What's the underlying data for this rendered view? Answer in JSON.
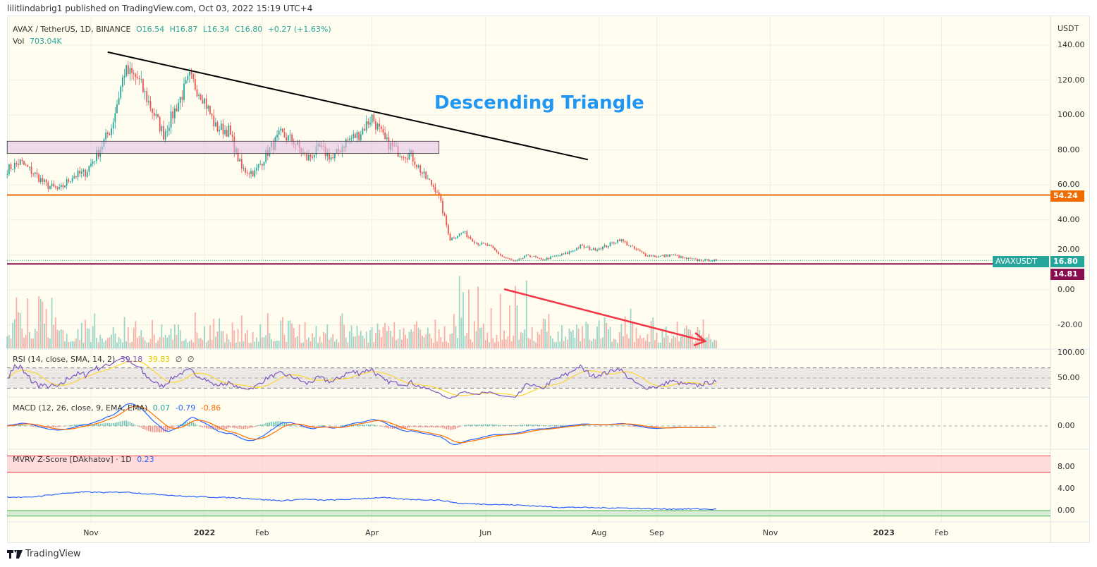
{
  "header": {
    "published": "lilitlindabrig1 published on TradingView.com, Oct 03, 2022 15:19 UTC+4"
  },
  "legend": {
    "symbol": "AVAX / TetherUS, 1D, BINANCE",
    "open": "O16.54",
    "high": "H16.87",
    "low": "L16.34",
    "close": "C16.80",
    "change": "+0.27 (+1.63%)",
    "vol_label": "Vol",
    "vol_value": "703.04K"
  },
  "rsi_legend": {
    "label": "RSI (14, close, SMA, 14, 2)",
    "rsi": "39.18",
    "sma": "39.83",
    "x1": "∅",
    "x2": "∅"
  },
  "macd_legend": {
    "label": "MACD (12, 26, close, 9, EMA, EMA)",
    "hist": "0.07",
    "macd": "-0.79",
    "signal": "-0.86"
  },
  "mvrv_legend": {
    "label": "MVRV Z-Score [DAkhatov] · 1D",
    "value": "0.23"
  },
  "axis": {
    "currency": "USDT",
    "price_ticks": [
      "140.00",
      "120.00",
      "100.00",
      "80.00",
      "60.00",
      "40.00",
      "20.00",
      "0.00",
      "-20.00"
    ],
    "rsi_ticks": [
      "100.00",
      "50.00"
    ],
    "macd_ticks": [
      "0.00"
    ],
    "mvrv_ticks": [
      "8.00",
      "4.00",
      "0.00"
    ],
    "time_ticks": [
      "Nov",
      "2022",
      "Feb",
      "Apr",
      "Jun",
      "Aug",
      "Sep",
      "Nov",
      "2023",
      "Feb"
    ]
  },
  "tags": {
    "orange_level": "54.24",
    "symbol": "AVAXUSDT",
    "last": "16.80",
    "purple_level": "14.81"
  },
  "annotation": {
    "title": "Descending Triangle"
  },
  "brand": {
    "name": "TradingView"
  },
  "colors": {
    "up": "#26a69a",
    "down": "#ef5350",
    "orange": "#ef6c00",
    "purple": "#880e4f",
    "rsi": "#7e57c2",
    "rsi_sma": "#fdd835",
    "macd": "#2962ff",
    "signal": "#ff6d00",
    "mvrv": "#2962ff",
    "title": "#2196f3"
  },
  "chart_data": {
    "type": "candlestick",
    "symbol": "AVAX / TetherUS, 1D, BINANCE",
    "ylim": [
      -25,
      150
    ],
    "weekly_close": {
      "dates": [
        "2021-09-17",
        "2021-09-24",
        "2021-10-01",
        "2021-10-08",
        "2021-10-15",
        "2021-10-22",
        "2021-10-29",
        "2021-11-05",
        "2021-11-12",
        "2021-11-19",
        "2021-11-26",
        "2021-12-03",
        "2021-12-10",
        "2021-12-17",
        "2021-12-24",
        "2021-12-31",
        "2022-01-07",
        "2022-01-14",
        "2022-01-21",
        "2022-01-28",
        "2022-02-04",
        "2022-02-11",
        "2022-02-18",
        "2022-02-25",
        "2022-03-04",
        "2022-03-11",
        "2022-03-18",
        "2022-03-25",
        "2022-04-01",
        "2022-04-08",
        "2022-04-15",
        "2022-04-22",
        "2022-04-29",
        "2022-05-06",
        "2022-05-13",
        "2022-05-20",
        "2022-05-27",
        "2022-06-03",
        "2022-06-10",
        "2022-06-17",
        "2022-06-24",
        "2022-07-01",
        "2022-07-08",
        "2022-07-15",
        "2022-07-22",
        "2022-07-29",
        "2022-08-05",
        "2022-08-12",
        "2022-08-19",
        "2022-08-26",
        "2022-09-02",
        "2022-09-09",
        "2022-09-16",
        "2022-09-23",
        "2022-09-30",
        "2022-10-03"
      ],
      "values": [
        69,
        73,
        67,
        60,
        57,
        65,
        67,
        79,
        93,
        125,
        121,
        105,
        89,
        105,
        121,
        111,
        93,
        91,
        69,
        67,
        79,
        89,
        85,
        75,
        81,
        75,
        85,
        89,
        99,
        85,
        79,
        77,
        65,
        57,
        29,
        33,
        27,
        25,
        19,
        16,
        20,
        17,
        19,
        21,
        25,
        23,
        25,
        29,
        24,
        20,
        19,
        20,
        18,
        17,
        17,
        16.8
      ]
    },
    "mvrv_weekly": [
      2.5,
      2.4,
      2.8,
      3.2,
      3.4,
      3.3,
      3.4,
      3.1,
      2.9,
      2.6,
      2.5,
      2.4,
      2.3,
      2.0,
      1.8,
      2.1,
      1.9,
      2.0,
      2.2,
      2.4,
      2.1,
      2.0,
      1.9,
      1.3,
      1.2,
      1.1,
      1.0,
      0.8,
      0.6,
      0.6,
      0.5,
      0.5,
      0.4,
      0.3,
      0.3,
      0.3,
      0.23
    ],
    "mvrv_bands": {
      "red": [
        7,
        10
      ],
      "green": [
        -1,
        0
      ]
    },
    "levels": {
      "orange": 54.24,
      "purple": 14.81,
      "last": 16.8
    },
    "drawings": {
      "trendline": {
        "from": [
          "2021-11-10",
          136
        ],
        "to": [
          "2022-07-26",
          74.5
        ],
        "color": "#000000"
      },
      "zone": {
        "from": [
          "2021-09-17",
          85
        ],
        "to": [
          "2022-05-07",
          78
        ],
        "color": "#e1bee7"
      },
      "arrow": {
        "from": [
          "2022-06-11",
          0.4
        ],
        "to": [
          "2022-09-27",
          -29.4
        ],
        "color": "#f23645"
      },
      "label": {
        "at": [
          "2022-05-03",
          106
        ]
      }
    },
    "rsi": {
      "period": 14,
      "sma": 14,
      "bands": [
        70,
        50,
        30
      ],
      "last": 39.18,
      "sma_last": 39.83
    },
    "macd": {
      "fast": 12,
      "slow": 26,
      "signal": 9,
      "hist": 0.07,
      "macd": -0.79,
      "signal_last": -0.86
    }
  }
}
